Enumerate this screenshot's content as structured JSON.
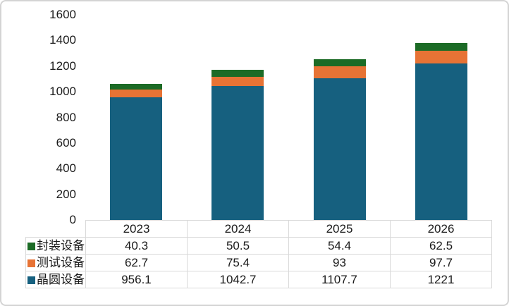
{
  "colors": {
    "frame_border": "#d4d4d4",
    "table_border": "#d9d9d9",
    "text": "#1a1a1a",
    "background": "#ffffff"
  },
  "chart_data": {
    "type": "bar",
    "stacked": true,
    "title": "",
    "xlabel": "",
    "ylabel": "",
    "categories": [
      "2023",
      "2024",
      "2025",
      "2026"
    ],
    "series": [
      {
        "name": "封装设备",
        "color": "#1c6b26",
        "values": [
          40.3,
          50.5,
          54.4,
          62.5
        ]
      },
      {
        "name": "测试设备",
        "color": "#e77335",
        "values": [
          62.7,
          75.4,
          93,
          97.7
        ]
      },
      {
        "name": "晶圆设备",
        "color": "#16607f",
        "values": [
          956.1,
          1042.7,
          1107.7,
          1221
        ]
      }
    ],
    "stack_bottom_to_top": [
      "晶圆设备",
      "测试设备",
      "封装设备"
    ],
    "totals": [
      1059.1,
      1168.6,
      1255.1,
      1381.2
    ],
    "ylim": [
      0,
      1600
    ],
    "ytick_step": 200,
    "yticks": [
      "1600",
      "1400",
      "1200",
      "1000",
      "800",
      "600",
      "400",
      "200",
      "0"
    ],
    "grid": false,
    "legend_position": "data-table-left-column"
  }
}
